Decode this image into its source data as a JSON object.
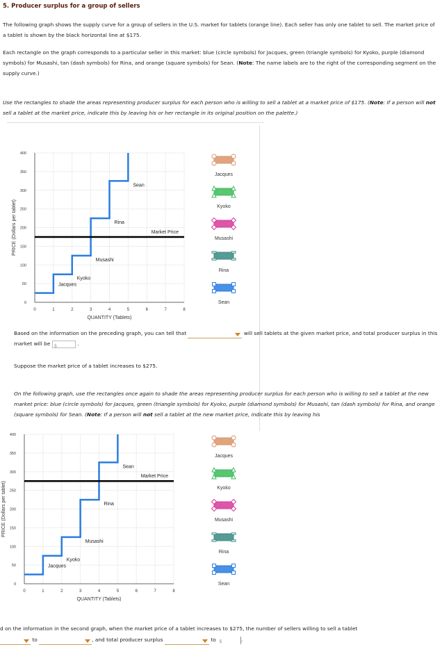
{
  "title": "5. Producer surplus for a group of sellers",
  "intro1": "The following graph shows the supply curve for a group of sellers in the U.S. market for tablets (orange line). Each seller has only one tablet to sell. The market price of a tablet is shown by the black horizontal line at $175.",
  "intro2a": "Each rectangle on the graph corresponds to a particular seller in this market: blue (circle symbols) for Jacques, green (triangle symbols) for Kyoko, purple (diamond symbols) for Musashi, tan (dash symbols) for Rina, and orange (square symbols) for Sean. (",
  "note_bold": "Note",
  "intro2b": ": The name labels are to the right of the corresponding segment on the supply curve.)",
  "instr1a": "Use the rectangles to shade the areas representing producer surplus for each person who is willing to sell a tablet at a market price of $175. (",
  "instr1b": ": If a person will ",
  "not_bold": "not",
  "instr1c": " sell a tablet at the market price, indicate this by leaving his or her rectangle in its original position on the palette.)",
  "q1a": "Based on the information on the preceding graph, you can tell that",
  "q1b": "will sell tablets at the given market price, and total producer surplus in this market will be",
  "dollar": "$",
  "period": ".",
  "suppose": "Suppose the market price of a tablet increases to $275.",
  "instr2a": "On the following graph, use the rectangles once again to shade the areas representing producer surplus for each person who is willing to sell a tablet at the new market price: blue (circle symbols) for Jacques, green (triangle symbols) for Kyoko, purple (diamond symbols) for Musashi, tan (dash symbols) for Rina, and orange (square symbols) for Sean. (",
  "instr2b": ": If a person will ",
  "instr2c": " sell a tablet at the new market price, indicate this by leaving his",
  "q2a": "d on the information in the second graph, when the market price of a tablet increases to $275, the number of sellers willing to sell a tablet",
  "q2_to1": "to",
  "q2_and": ", and total producer surplus",
  "q2_to2": "to",
  "palette": [
    {
      "name": "Jacques",
      "color": "#d9956a",
      "symbol": "circle"
    },
    {
      "name": "Kyoko",
      "color": "#3dbb5a",
      "symbol": "triangle"
    },
    {
      "name": "Musashi",
      "color": "#d63a9a",
      "symbol": "diamond"
    },
    {
      "name": "Rina",
      "color": "#3a8a84",
      "symbol": "dash"
    },
    {
      "name": "Sean",
      "color": "#2a7de0",
      "symbol": "square"
    }
  ],
  "chart_data": [
    {
      "type": "line",
      "xlabel": "QUANTITY (Tablets)",
      "ylabel": "PRICE (Dollars per tablet)",
      "xlim": [
        0,
        8
      ],
      "ylim": [
        0,
        400
      ],
      "xticks": [
        0,
        1,
        2,
        3,
        4,
        5,
        6,
        7,
        8
      ],
      "yticks": [
        0,
        50,
        100,
        150,
        200,
        250,
        300,
        350,
        400
      ],
      "grid": true,
      "supply": {
        "color": "#2a7de0",
        "steps": [
          {
            "name": "Jacques",
            "q": [
              0,
              1
            ],
            "price": 25
          },
          {
            "name": "Kyoko",
            "q": [
              1,
              2
            ],
            "price": 75
          },
          {
            "name": "Musashi",
            "q": [
              2,
              3
            ],
            "price": 125
          },
          {
            "name": "Rina",
            "q": [
              3,
              4
            ],
            "price": 225
          },
          {
            "name": "Sean",
            "q": [
              4,
              5
            ],
            "price": 325
          }
        ],
        "top": 400
      },
      "market_price": {
        "label": "Market Price",
        "value": 175,
        "color": "#000000"
      }
    },
    {
      "type": "line",
      "xlabel": "QUANTITY (Tablets)",
      "ylabel": "PRICE (Dollars per tablet)",
      "xlim": [
        0,
        8
      ],
      "ylim": [
        0,
        400
      ],
      "xticks": [
        0,
        1,
        2,
        3,
        4,
        5,
        6,
        7,
        8
      ],
      "yticks": [
        0,
        50,
        100,
        150,
        200,
        250,
        300,
        350,
        400
      ],
      "grid": true,
      "supply": {
        "color": "#2a7de0",
        "steps": [
          {
            "name": "Jacques",
            "q": [
              0,
              1
            ],
            "price": 25
          },
          {
            "name": "Kyoko",
            "q": [
              1,
              2
            ],
            "price": 75
          },
          {
            "name": "Musashi",
            "q": [
              2,
              3
            ],
            "price": 125
          },
          {
            "name": "Rina",
            "q": [
              3,
              4
            ],
            "price": 225
          },
          {
            "name": "Sean",
            "q": [
              4,
              5
            ],
            "price": 325
          }
        ],
        "top": 400
      },
      "market_price": {
        "label": "Market Price",
        "value": 275,
        "color": "#000000"
      }
    }
  ]
}
